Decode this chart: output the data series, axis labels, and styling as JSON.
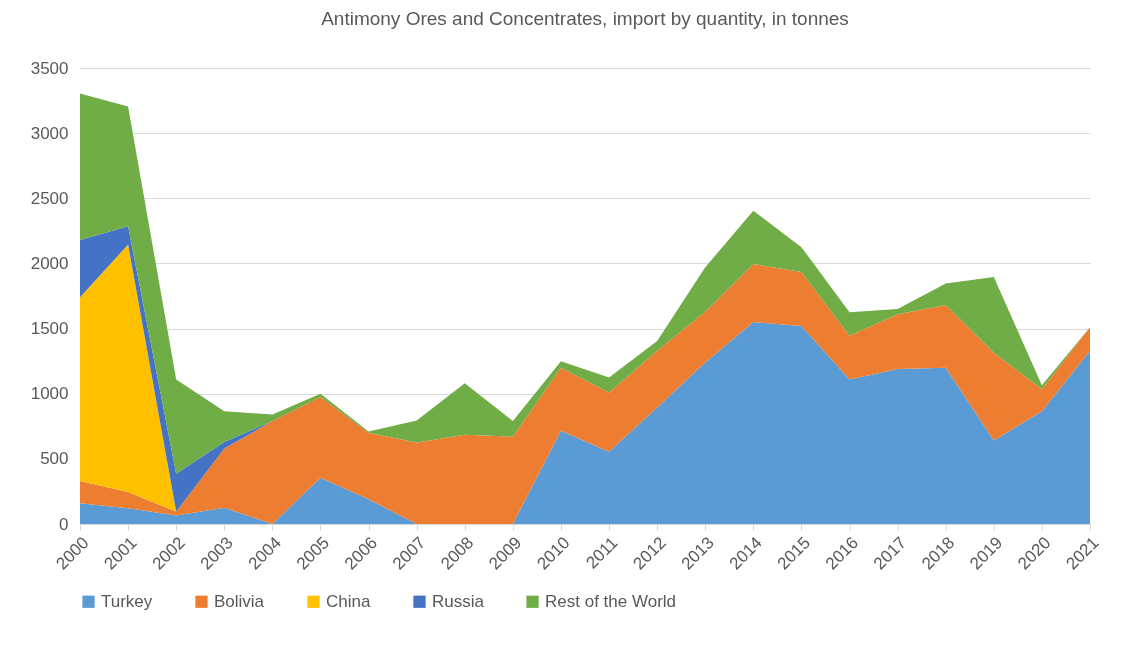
{
  "chart_data": {
    "type": "area",
    "stacked": true,
    "title": "Antimony Ores and Concentrates,  import by quantity, in tonnes",
    "categories": [
      "2000",
      "2001",
      "2002",
      "2003",
      "2004",
      "2005",
      "2006",
      "2007",
      "2008",
      "2009",
      "2010",
      "2011",
      "2012",
      "2013",
      "2014",
      "2015",
      "2016",
      "2017",
      "2018",
      "2019",
      "2020",
      "2021"
    ],
    "series": [
      {
        "name": "Turkey",
        "color": "#5b9bd5",
        "values": [
          160,
          120,
          65,
          125,
          0,
          355,
          190,
          0,
          0,
          0,
          715,
          555,
          895,
          1240,
          1550,
          1520,
          1110,
          1190,
          1200,
          640,
          865,
          1330
        ]
      },
      {
        "name": "Bolivia",
        "color": "#ed7d31",
        "values": [
          170,
          125,
          30,
          455,
          790,
          620,
          510,
          625,
          685,
          670,
          485,
          455,
          435,
          390,
          445,
          415,
          335,
          420,
          480,
          675,
          170,
          180
        ]
      },
      {
        "name": "China",
        "color": "#ffc000",
        "values": [
          1410,
          1900,
          0,
          0,
          0,
          0,
          0,
          0,
          0,
          0,
          0,
          0,
          0,
          0,
          0,
          0,
          0,
          0,
          0,
          0,
          0,
          0
        ]
      },
      {
        "name": "Russia",
        "color": "#4472c4",
        "values": [
          440,
          140,
          290,
          50,
          0,
          0,
          0,
          0,
          0,
          0,
          0,
          0,
          0,
          0,
          0,
          0,
          0,
          0,
          0,
          0,
          0,
          0
        ]
      },
      {
        "name": "Rest of the World",
        "color": "#70ad47",
        "values": [
          1125,
          920,
          725,
          235,
          50,
          25,
          10,
          170,
          395,
          120,
          50,
          115,
          75,
          340,
          410,
          190,
          180,
          40,
          165,
          580,
          30,
          0
        ]
      }
    ],
    "ylim": [
      0,
      3500
    ],
    "yticks": [
      0,
      500,
      1000,
      1500,
      2000,
      2500,
      3000,
      3500
    ],
    "grid": "y",
    "legend": "bottom"
  }
}
